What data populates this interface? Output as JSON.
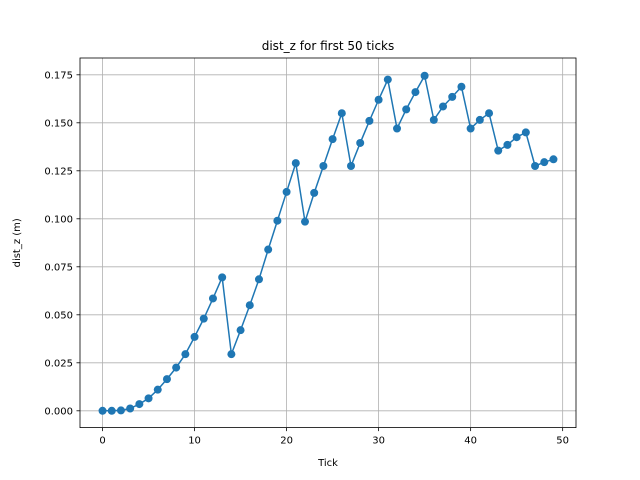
{
  "chart_data": {
    "type": "line",
    "title": "dist_z for first 50 ticks",
    "xlabel": "Tick",
    "ylabel": "dist_z (m)",
    "xlim": [
      -2.45,
      51.45
    ],
    "ylim": [
      -0.00875,
      0.18375
    ],
    "grid": true,
    "marker": "circle",
    "color": "#1f77b4",
    "x_ticks": [
      0,
      10,
      20,
      30,
      40,
      50
    ],
    "x_tick_labels": [
      "0",
      "10",
      "20",
      "30",
      "40",
      "50"
    ],
    "y_ticks": [
      0.0,
      0.025,
      0.05,
      0.075,
      0.1,
      0.125,
      0.15,
      0.175
    ],
    "y_tick_labels": [
      "0.000",
      "0.025",
      "0.050",
      "0.075",
      "0.100",
      "0.125",
      "0.150",
      "0.175"
    ],
    "x": [
      0,
      1,
      2,
      3,
      4,
      5,
      6,
      7,
      8,
      9,
      10,
      11,
      12,
      13,
      14,
      15,
      16,
      17,
      18,
      19,
      20,
      21,
      22,
      23,
      24,
      25,
      26,
      27,
      28,
      29,
      30,
      31,
      32,
      33,
      34,
      35,
      36,
      37,
      38,
      39,
      40,
      41,
      42,
      43,
      44,
      45,
      46,
      47,
      48,
      49
    ],
    "y": [
      0.0,
      0.0,
      0.0002,
      0.0012,
      0.0035,
      0.0065,
      0.011,
      0.0165,
      0.0225,
      0.0295,
      0.0385,
      0.048,
      0.0585,
      0.0695,
      0.0295,
      0.042,
      0.055,
      0.0685,
      0.084,
      0.099,
      0.114,
      0.129,
      0.0985,
      0.1135,
      0.1275,
      0.1415,
      0.155,
      0.1275,
      0.1395,
      0.151,
      0.162,
      0.1725,
      0.147,
      0.157,
      0.166,
      0.1745,
      0.1515,
      0.1585,
      0.1635,
      0.1688,
      0.147,
      0.1515,
      0.155,
      0.1355,
      0.1385,
      0.1425,
      0.145,
      0.1275,
      0.1295,
      0.131
    ]
  }
}
